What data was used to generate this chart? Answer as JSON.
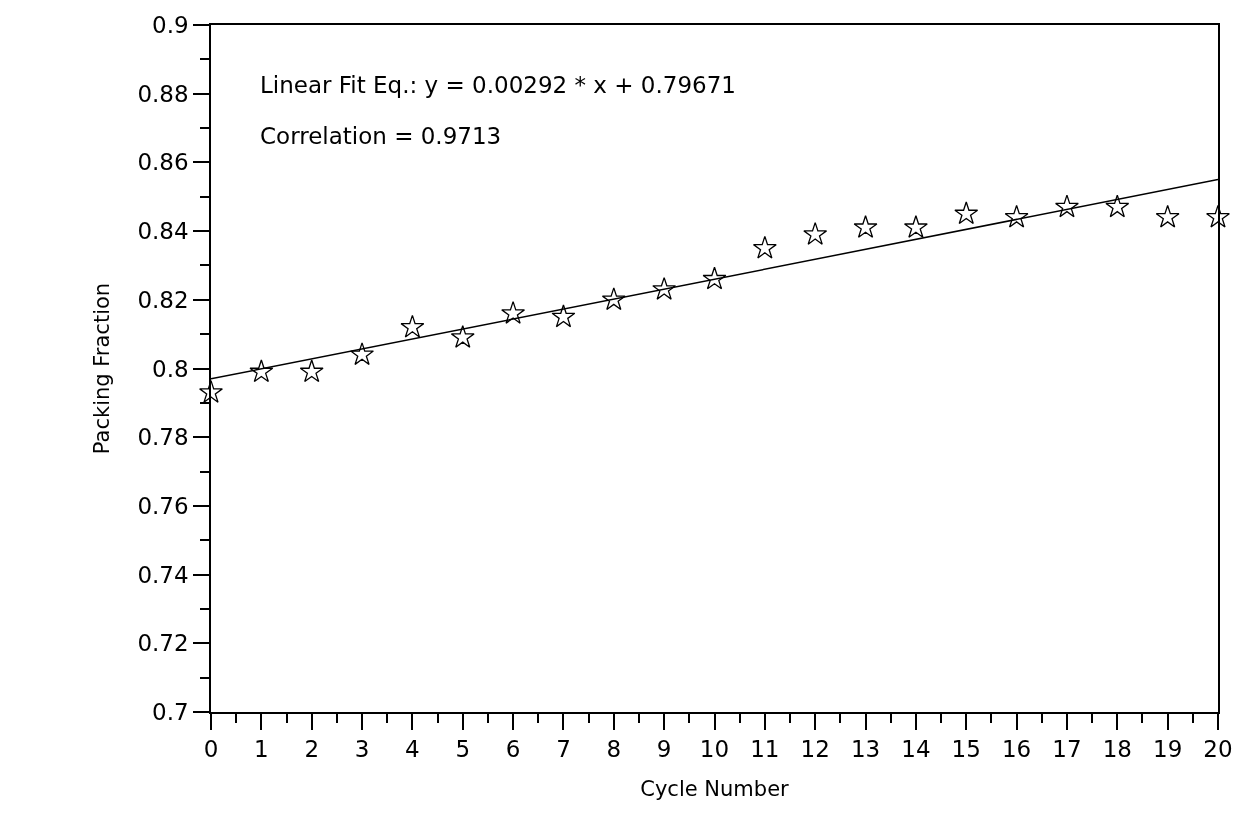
{
  "chart_data": {
    "type": "scatter",
    "xlabel": "Cycle Number",
    "ylabel": "Packing Fraction",
    "annotations": [
      "Linear Fit Eq.: y = 0.00292 * x + 0.79671",
      "Correlation = 0.9713"
    ],
    "x": [
      0,
      1,
      2,
      3,
      4,
      5,
      6,
      7,
      8,
      9,
      10,
      11,
      12,
      13,
      14,
      15,
      16,
      17,
      18,
      19,
      20
    ],
    "series": [
      {
        "color": "#000000",
        "marker": "star",
        "values": [
          0.793,
          0.799,
          0.799,
          0.804,
          0.812,
          0.809,
          0.816,
          0.815,
          0.82,
          0.823,
          0.826,
          0.835,
          0.839,
          0.841,
          0.841,
          0.845,
          0.844,
          0.847,
          0.847,
          0.844,
          0.844
        ]
      },
      {
        "type": "line",
        "color": "#000000",
        "marker": "none",
        "line_style": "solid",
        "x": [
          0,
          20
        ],
        "values": [
          0.797,
          0.855
        ]
      }
    ],
    "xlim": [
      0,
      20
    ],
    "xticks": [
      0,
      {
        "value": 0.5,
        "label": null
      },
      1,
      {
        "value": 1.5,
        "label": null
      },
      2,
      {
        "value": 2.5,
        "label": null
      },
      3,
      {
        "value": 3.5,
        "label": null
      },
      4,
      {
        "value": 4.5,
        "label": null
      },
      5,
      {
        "value": 5.5,
        "label": null
      },
      6,
      {
        "value": 6.5,
        "label": null
      },
      7,
      {
        "value": 7.5,
        "label": null
      },
      8,
      {
        "value": 8.5,
        "label": null
      },
      9,
      {
        "value": 9.5,
        "label": null
      },
      10,
      {
        "value": 10.5,
        "label": null
      },
      11,
      {
        "value": 11.5,
        "label": null
      },
      12,
      {
        "value": 12.5,
        "label": null
      },
      13,
      {
        "value": 13.5,
        "label": null
      },
      14,
      {
        "value": 14.5,
        "label": null
      },
      15,
      {
        "value": 15.5,
        "label": null
      },
      16,
      {
        "value": 16.5,
        "label": null
      },
      17,
      {
        "value": 17.5,
        "label": null
      },
      18,
      {
        "value": 18.5,
        "label": null
      },
      19,
      {
        "value": 19.5,
        "label": null
      },
      20
    ],
    "ylim": [
      0.7,
      0.9
    ],
    "yticks": [
      0.7,
      {
        "value": 0.71,
        "label": null
      },
      0.72,
      {
        "value": 0.73,
        "label": null
      },
      0.74,
      {
        "value": 0.75,
        "label": null
      },
      0.76,
      {
        "value": 0.77,
        "label": null
      },
      0.78,
      {
        "value": 0.79,
        "label": null
      },
      0.8,
      {
        "value": 0.81,
        "label": null
      },
      0.82,
      {
        "value": 0.83,
        "label": null
      },
      0.84,
      {
        "value": 0.85,
        "label": null
      },
      0.86,
      {
        "value": 0.87,
        "label": null
      },
      0.88,
      {
        "value": 0.89,
        "label": null
      },
      0.9
    ]
  }
}
